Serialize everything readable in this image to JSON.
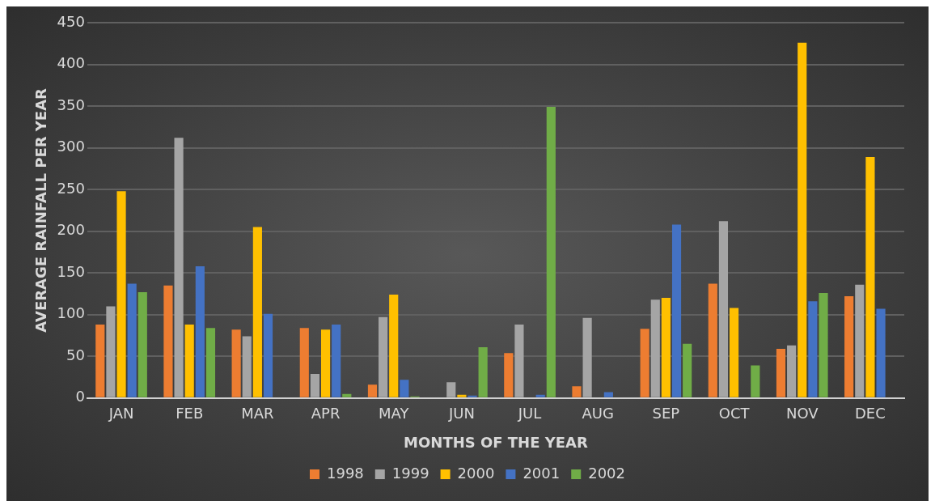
{
  "chart_data": {
    "type": "bar",
    "xlabel": "MONTHS OF THE YEAR",
    "ylabel": "AVERAGE RAINFALL PER YEAR",
    "categories": [
      "JAN",
      "FEB",
      "MAR",
      "APR",
      "MAY",
      "JUN",
      "JUL",
      "AUG",
      "SEP",
      "OCT",
      "NOV",
      "DEC"
    ],
    "series": [
      {
        "name": "1998",
        "color": "#ed7d31",
        "values": [
          88,
          135,
          82,
          84,
          16,
          null,
          54,
          14,
          83,
          137,
          59,
          122
        ]
      },
      {
        "name": "1999",
        "color": "#a5a5a5",
        "values": [
          110,
          312,
          74,
          29,
          97,
          19,
          88,
          96,
          118,
          212,
          63,
          136
        ]
      },
      {
        "name": "2000",
        "color": "#ffc000",
        "values": [
          248,
          88,
          205,
          82,
          124,
          4,
          null,
          null,
          120,
          108,
          426,
          289
        ]
      },
      {
        "name": "2001",
        "color": "#4472c4",
        "values": [
          137,
          158,
          101,
          88,
          22,
          3,
          4,
          7,
          208,
          null,
          116,
          107
        ]
      },
      {
        "name": "2002",
        "color": "#70ad47",
        "values": [
          127,
          84,
          null,
          5,
          2,
          61,
          349,
          null,
          65,
          39,
          126,
          null
        ]
      }
    ],
    "ylim": [
      0,
      450
    ],
    "yticks": [
      0,
      50,
      100,
      150,
      200,
      250,
      300,
      350,
      400,
      450
    ],
    "grid": "y",
    "legend": "bottom"
  }
}
